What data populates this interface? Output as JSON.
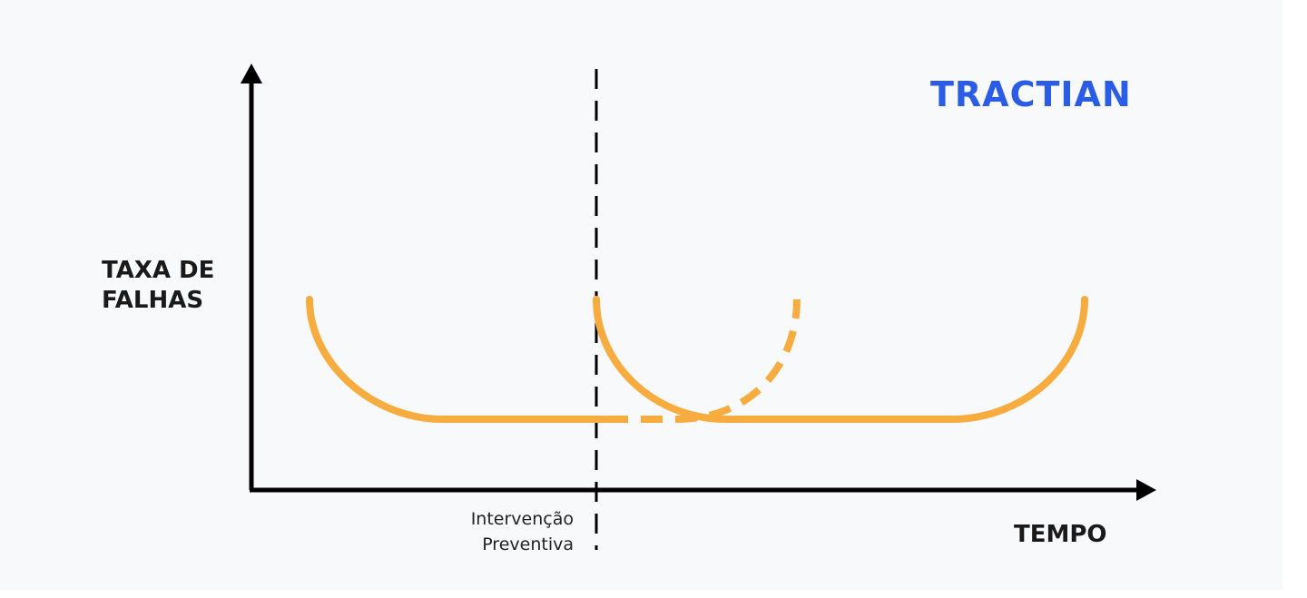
{
  "diagram": {
    "y_axis_label": "TAXA DE\nFALHAS",
    "x_axis_label": "TEMPO",
    "intervention_label": "Intervenção\nPreventiva",
    "logo_text": "TRACTIAN",
    "colors": {
      "curve": "#f7ac40",
      "axis": "#000000",
      "logo": "#2b5ce6",
      "background": "#f8f9fb"
    }
  }
}
